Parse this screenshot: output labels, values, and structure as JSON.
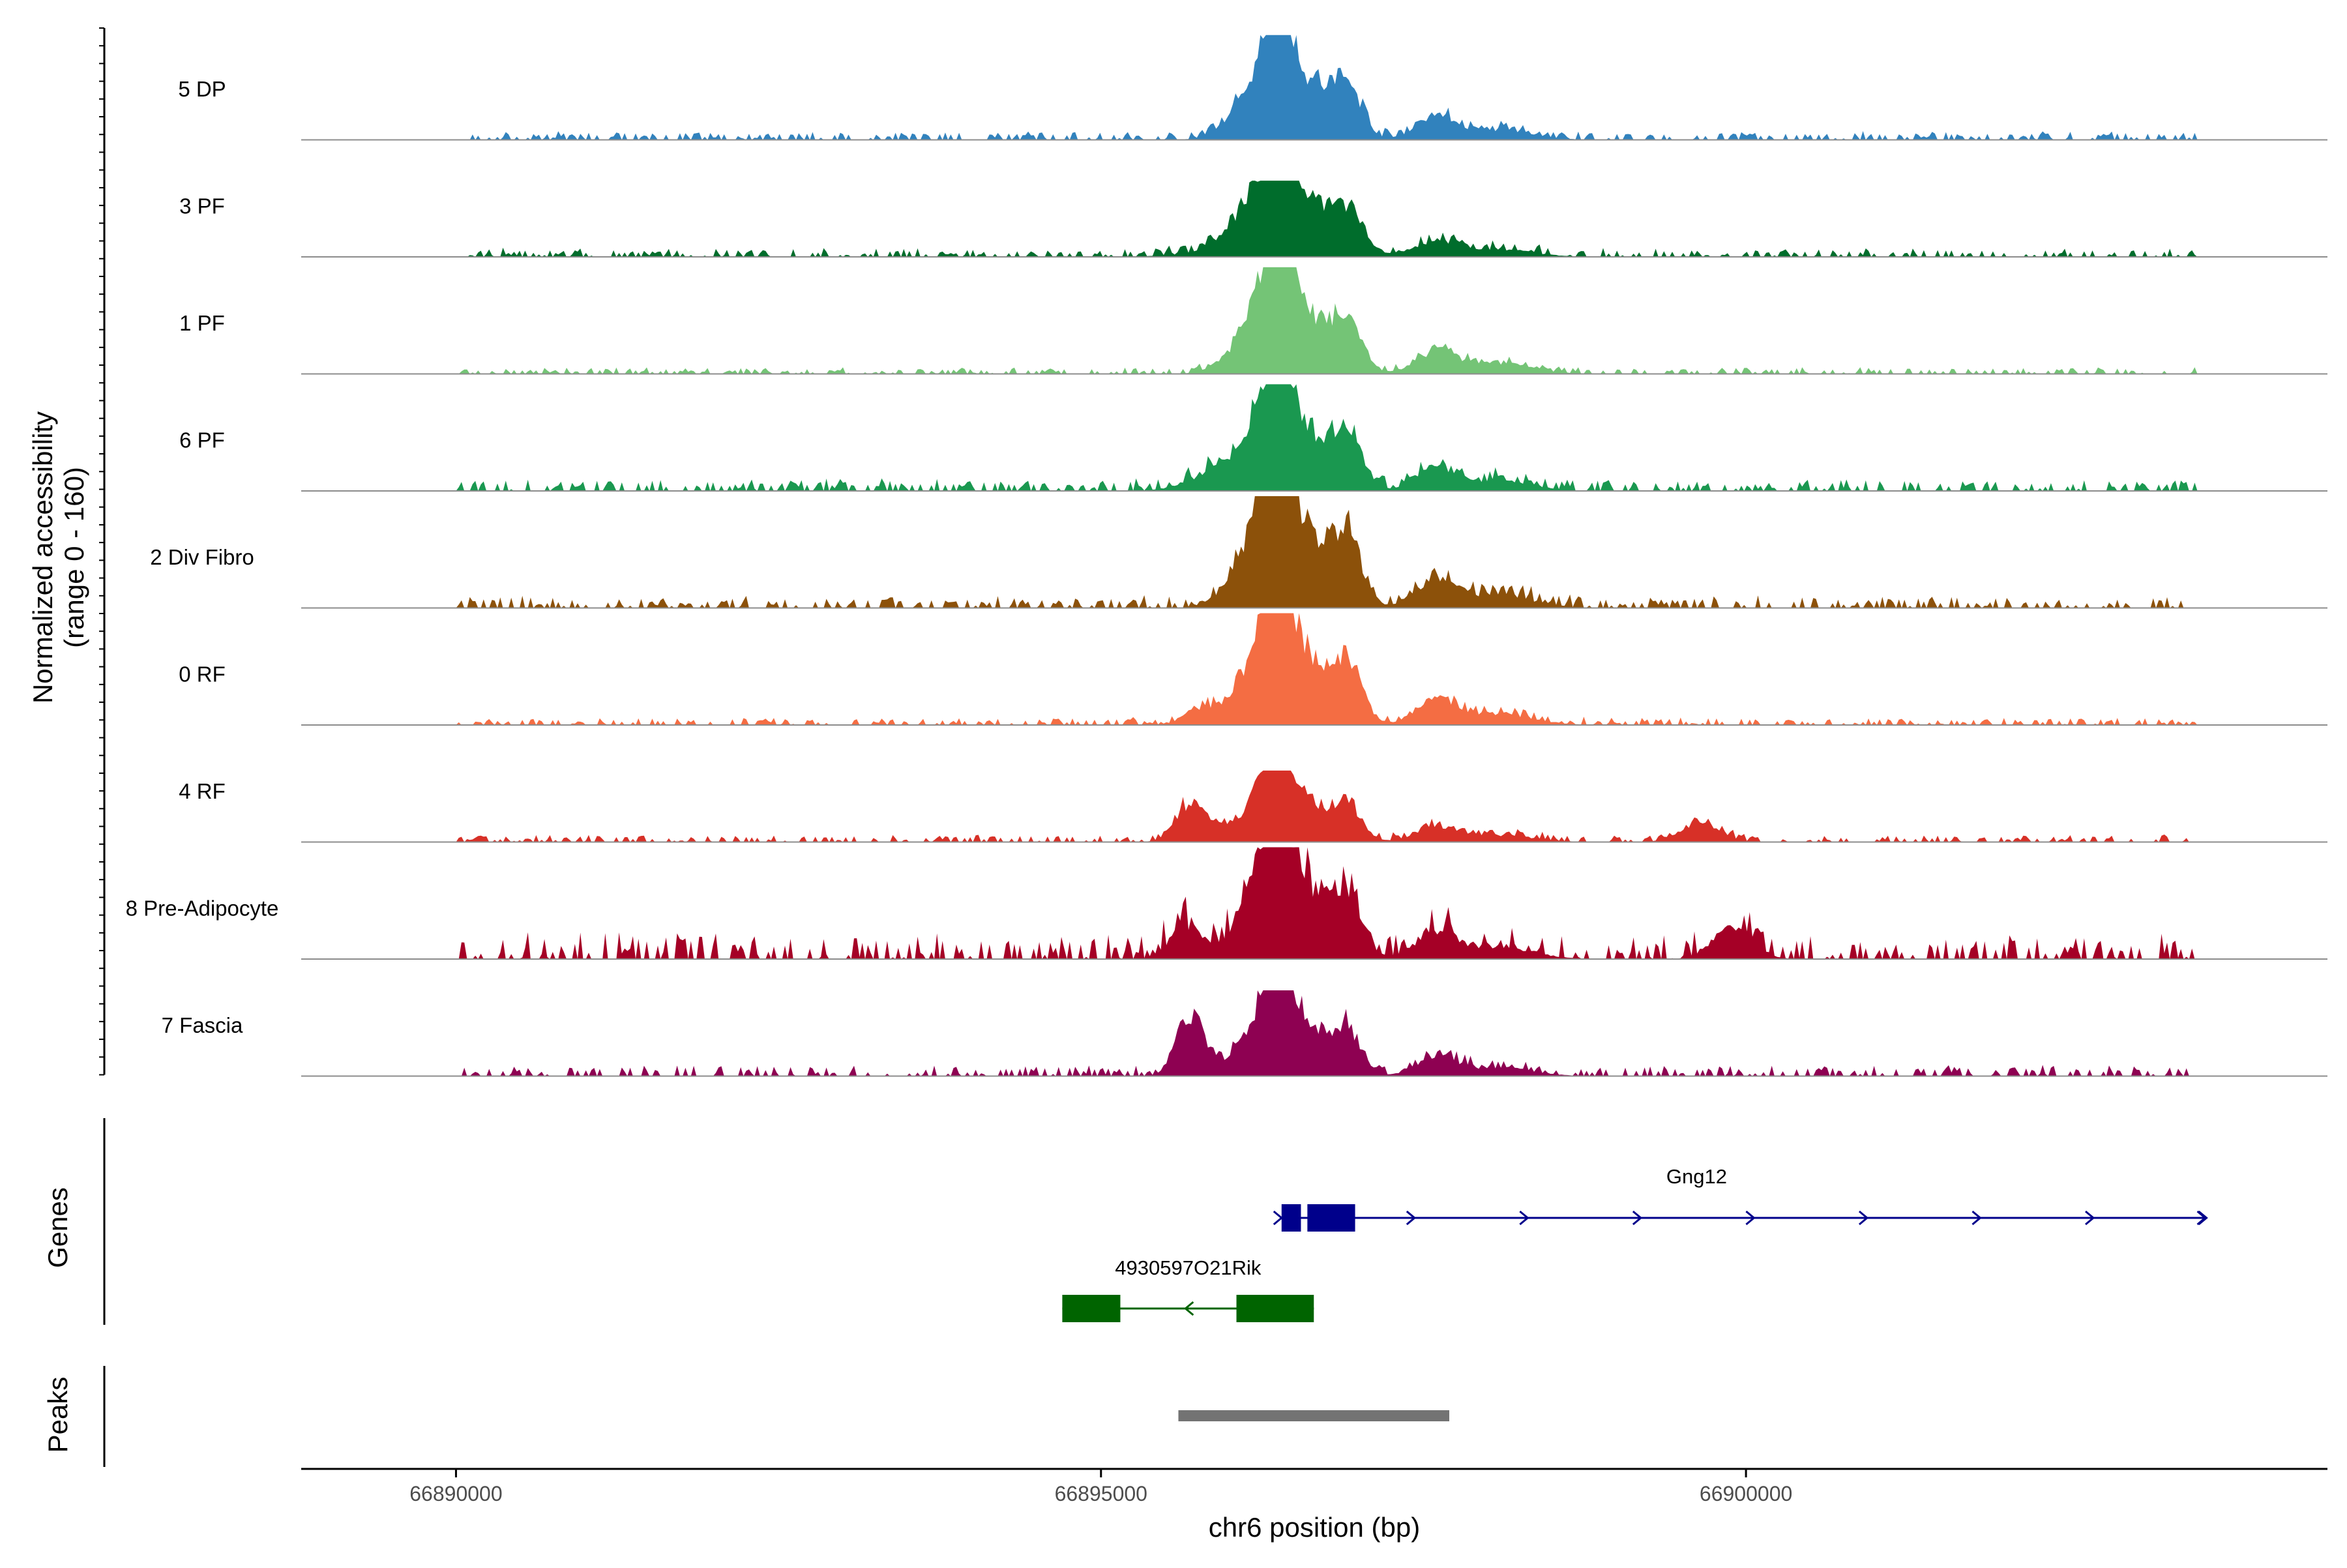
{
  "figure_title": "",
  "chart_data": {
    "type": "area",
    "chromosome": "chr6",
    "region": [
      66888800,
      66903800
    ],
    "coverage": {
      "ylabel": "Normalized accessibility",
      "ylabel_range": "(range 0 - 160)",
      "ylim": [
        0,
        160
      ],
      "peak_center": 66896400,
      "tracks": [
        {
          "name": "5 DP",
          "color": "#3182BD",
          "peak": 110,
          "lo": 0.015,
          "hi": 0.06,
          "extra": []
        },
        {
          "name": "3 PF",
          "color": "#006D2C",
          "peak": 80,
          "lo": 0.02,
          "hi": 0.09,
          "extra": [
            [
              66896400,
              0.3,
              400
            ]
          ]
        },
        {
          "name": "1 PF",
          "color": "#74C476",
          "peak": 112,
          "lo": 0.01,
          "hi": 0.05,
          "extra": []
        },
        {
          "name": "6 PF",
          "color": "#1A9850",
          "peak": 112,
          "lo": 0.02,
          "hi": 0.09,
          "extra": [
            [
              66895850,
              0.15,
              200
            ]
          ]
        },
        {
          "name": "2 Div Fibro",
          "color": "#8C510A",
          "peak": 142,
          "lo": 0.015,
          "hi": 0.07,
          "extra": []
        },
        {
          "name": "0 RF",
          "color": "#F46D43",
          "peak": 125,
          "lo": 0.01,
          "hi": 0.05,
          "extra": [
            [
              66895750,
              0.12,
              120
            ]
          ]
        },
        {
          "name": "4 RF",
          "color": "#D73027",
          "peak": 75,
          "lo": 0.02,
          "hi": 0.08,
          "extra": [
            [
              66895700,
              0.55,
              120
            ],
            [
              66899650,
              0.3,
              150
            ]
          ]
        },
        {
          "name": "8 Pre-Adipocyte",
          "color": "#A50026",
          "peak": 135,
          "lo": 0.0,
          "hi": 0.2,
          "extra": [
            [
              66895650,
              0.28,
              120
            ],
            [
              66899900,
              0.28,
              150
            ]
          ]
        },
        {
          "name": "7 Fascia",
          "color": "#8E0152",
          "peak": 90,
          "lo": 0.02,
          "hi": 0.1,
          "extra": [
            [
              66895700,
              0.72,
              110
            ]
          ]
        }
      ]
    },
    "genes": {
      "label": "Genes",
      "items": [
        {
          "name": "Gng12",
          "strand": "+",
          "start": 66896400,
          "end": 66903550,
          "color": "#00008B",
          "exons": [
            [
              66896400,
              66896550
            ],
            [
              66896600,
              66896970
            ]
          ],
          "arrows": 8
        },
        {
          "name": "4930597O21Rik",
          "strand": "-",
          "start": 66894700,
          "end": 66896650,
          "color": "#006400",
          "exons": [
            [
              66894700,
              66895150
            ],
            [
              66896050,
              66896650
            ]
          ],
          "arrows": 1
        }
      ]
    },
    "peaks": {
      "label": "Peaks",
      "color": "#737373",
      "items": [
        [
          66895600,
          66897700
        ]
      ]
    },
    "x_axis": {
      "label": "chr6 position (bp)",
      "ticks": [
        66890000,
        66895000,
        66900000
      ],
      "tick_labels": [
        "66890000",
        "66895000",
        "66900000"
      ]
    }
  }
}
